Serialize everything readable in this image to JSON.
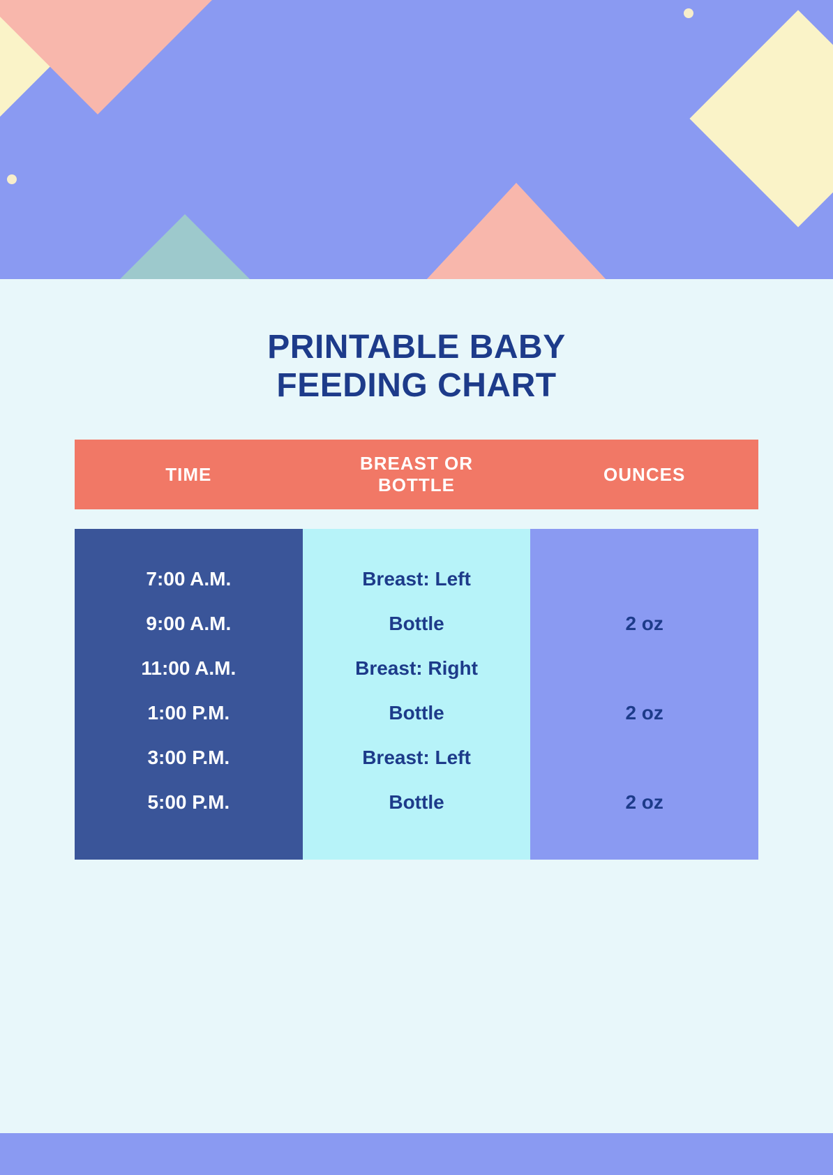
{
  "page": {
    "background_color": "#e8f7fa",
    "header_band_color": "#8a9af2",
    "footer_band_color": "#8a9af2"
  },
  "decor": {
    "pink": "#f8b7ac",
    "cream": "#faf3c8",
    "teal": "#9dc9cc",
    "dot_color": "#f7eecb",
    "dot_size": 14
  },
  "title": {
    "line1": "PRINTABLE BABY",
    "line2": "FEEDING CHART",
    "color": "#1d3b8a",
    "fontsize": 48
  },
  "table": {
    "header_bg": "#f17866",
    "header_text_color": "#ffffff",
    "col_time_bg": "#3a5599",
    "col_time_text": "#ffffff",
    "col_method_bg": "#b7f3f9",
    "col_method_text": "#1d3b8a",
    "col_ounces_bg": "#8a9af2",
    "col_ounces_text": "#1d3b8a",
    "headers": {
      "time": "TIME",
      "method_line1": "BREAST OR",
      "method_line2": "BOTTLE",
      "ounces": "OUNCES"
    },
    "rows": [
      {
        "time": "7:00 A.M.",
        "method": "Breast: Left",
        "ounces": ""
      },
      {
        "time": "9:00 A.M.",
        "method": "Bottle",
        "ounces": "2 oz"
      },
      {
        "time": "11:00 A.M.",
        "method": "Breast: Right",
        "ounces": ""
      },
      {
        "time": "1:00 P.M.",
        "method": "Bottle",
        "ounces": "2 oz"
      },
      {
        "time": "3:00 P.M.",
        "method": "Breast: Left",
        "ounces": ""
      },
      {
        "time": "5:00 P.M.",
        "method": "Bottle",
        "ounces": "2 oz"
      }
    ]
  }
}
